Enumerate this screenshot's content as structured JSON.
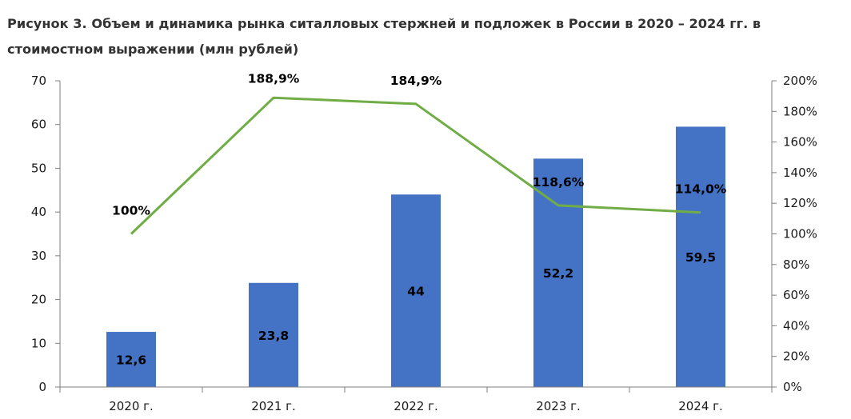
{
  "title_line1": "Рисунок 3. Объем и динамика рынка ситалловых стержней и подложек в России в 2020 – 2024 гг. в",
  "title_line2": "стоимостном выражении (млн рублей)",
  "colors": {
    "bar": "#4472C4",
    "line": "#70AD47",
    "axis": "#7f7f7f"
  },
  "chart_data": {
    "type": "bar",
    "title": "Рисунок 3. Объем и динамика рынка ситалловых стержней и подложек в России в 2020 – 2024 гг. в стоимостном выражении (млн рублей)",
    "categories": [
      "2020 г.",
      "2021 г.",
      "2022 г.",
      "2023 г.",
      "2024 г."
    ],
    "series": [
      {
        "type": "bar",
        "axis": "left",
        "values": [
          12.6,
          23.8,
          44,
          52.2,
          59.5
        ],
        "labels": [
          "12,6",
          "23,8",
          "44",
          "52,2",
          "59,5"
        ]
      },
      {
        "type": "line",
        "axis": "right",
        "values": [
          100,
          188.9,
          184.9,
          118.6,
          114.0
        ],
        "labels": [
          "100%",
          "188,9%",
          "184,9%",
          "118,6%",
          "114,0%"
        ]
      }
    ],
    "ylim_left": [
      0,
      70
    ],
    "yticks_left": [
      "0",
      "10",
      "20",
      "30",
      "40",
      "50",
      "60",
      "70"
    ],
    "ylim_right": [
      0,
      200
    ],
    "yticks_right": [
      "0%",
      "20%",
      "40%",
      "60%",
      "80%",
      "100%",
      "120%",
      "140%",
      "160%",
      "180%",
      "200%"
    ],
    "grid": false,
    "legend": "none"
  }
}
